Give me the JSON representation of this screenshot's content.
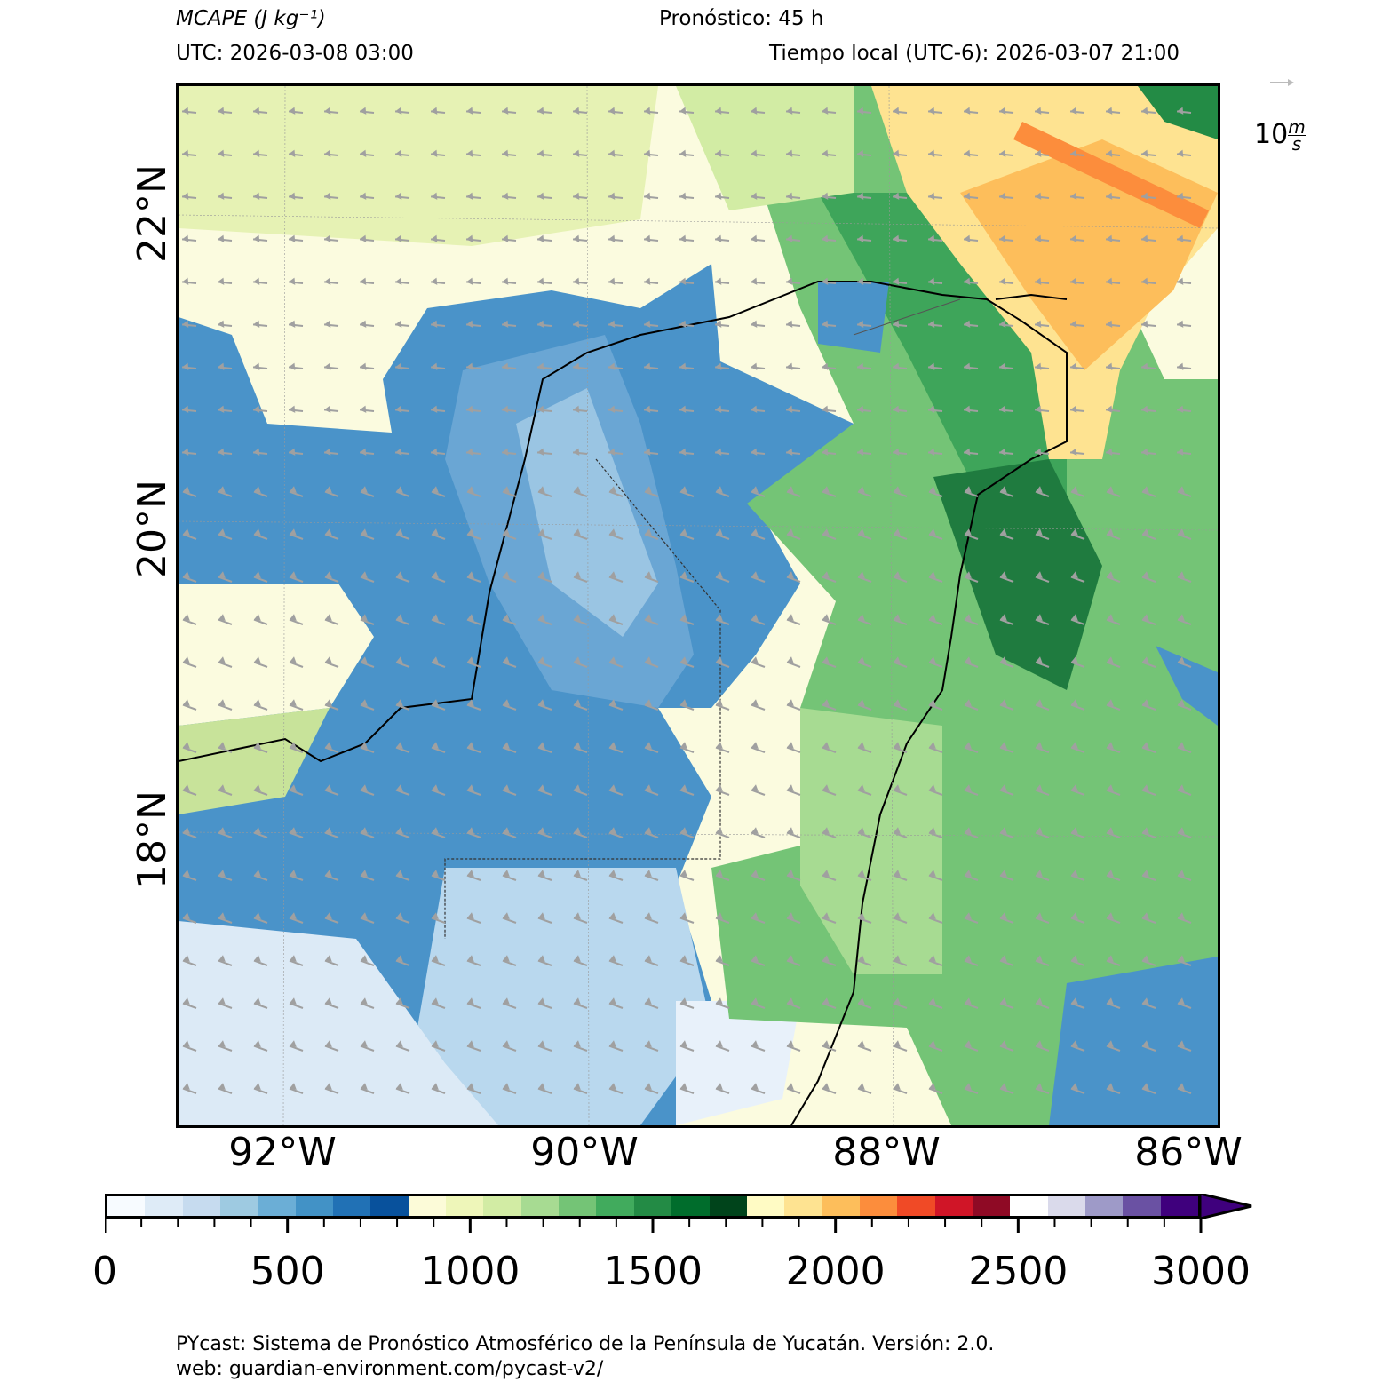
{
  "header": {
    "variable": "MCAPE (J kg⁻¹)",
    "forecast": "Pronóstico: 45 h",
    "utc": "UTC:  2026-03-08 03:00",
    "local": "Tiempo local (UTC-6): 2026-03-07 21:00"
  },
  "axes": {
    "lat_labels": [
      "22°N",
      "20°N",
      "18°N"
    ],
    "lon_labels": [
      "92°W",
      "90°W",
      "88°W",
      "86°W"
    ]
  },
  "wind_reference": {
    "value": "10",
    "unit_num": "m",
    "unit_den": "s"
  },
  "colorbar": {
    "ticks": [
      "0",
      "500",
      "1000",
      "1500",
      "2000",
      "2500",
      "3000"
    ],
    "colors": [
      "#f7fbff",
      "#deebf7",
      "#c6dbef",
      "#9ecae1",
      "#6baed6",
      "#4292c6",
      "#2171b5",
      "#08519c",
      "#fcfbd8",
      "#eef6b9",
      "#d2eca4",
      "#a7db92",
      "#74c476",
      "#41ab5d",
      "#238b45",
      "#006d2c",
      "#00441b",
      "#fffbc4",
      "#fee391",
      "#fdbe5b",
      "#fc8d3c",
      "#f04a26",
      "#d01527",
      "#8f0a25",
      "#ffffff",
      "#dadaeb",
      "#9e9ac8",
      "#6a51a3",
      "#3f007d"
    ],
    "extend_color": "#3f007d"
  },
  "footer": {
    "line1": "PYcast: Sistema de Pronóstico Atmosférico de la Península de Yucatán. Versión: 2.0.",
    "line2": "web: guardian-environment.com/pycast-v2/"
  }
}
